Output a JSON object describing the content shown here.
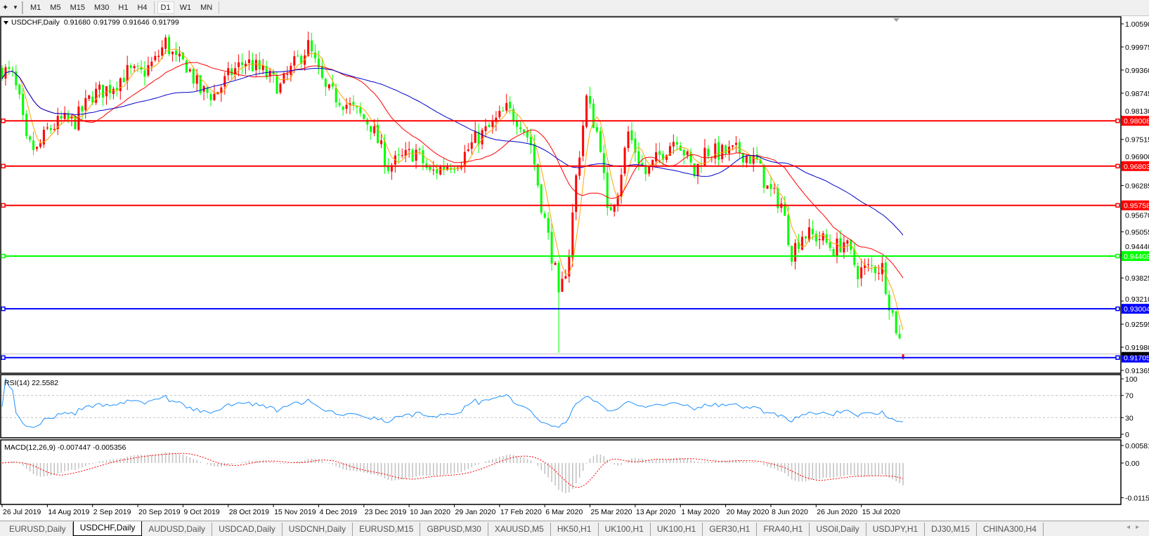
{
  "toolbar": {
    "periods": [
      "M1",
      "M5",
      "M15",
      "M30",
      "H1",
      "H4",
      "D1",
      "W1",
      "MN"
    ],
    "active_period": "D1"
  },
  "header": {
    "symbol": "USDCHF,Daily",
    "open": "0.91680",
    "high": "0.91799",
    "low": "0.91646",
    "close": "0.91799"
  },
  "price_axis": [
    "1.00590",
    "0.99975",
    "0.99360",
    "0.98745",
    "0.98130",
    "0.97515",
    "0.96900",
    "0.96285",
    "0.95670",
    "0.95055",
    "0.94440",
    "0.93825",
    "0.93210",
    "0.92595",
    "0.91980",
    "0.91365"
  ],
  "levels": [
    {
      "price": "0.98008",
      "color": "#FF0000"
    },
    {
      "price": "0.96803",
      "color": "#FF0000"
    },
    {
      "price": "0.95758",
      "color": "#FF0000"
    },
    {
      "price": "0.94408",
      "color": "#00FF00"
    },
    {
      "price": "0.93004",
      "color": "#0000FF"
    },
    {
      "price": "0.91705",
      "color": "#0000FF"
    }
  ],
  "bid": {
    "price": "0.91799",
    "color": "#C0C0C0"
  },
  "candle_colors": {
    "bull": "#FF0000",
    "bear": "#00FF00"
  },
  "ma_colors": {
    "fast": "#FFA500",
    "mid": "#FF0000",
    "slow": "#0000CD"
  },
  "price_path": [
    {
      "date": "26 Jul 2019",
      "close": 0.9938
    },
    {
      "date": "31 Jul 2019",
      "close": 0.992
    },
    {
      "date": "2 Aug 2019",
      "close": 0.985
    },
    {
      "date": "6 Aug 2019",
      "close": 0.974
    },
    {
      "date": "9 Aug 2019",
      "close": 0.972
    },
    {
      "date": "14 Aug 2019",
      "close": 0.9775
    },
    {
      "date": "20 Aug 2019",
      "close": 0.98
    },
    {
      "date": "26 Aug 2019",
      "close": 0.98
    },
    {
      "date": "2 Sep 2019",
      "close": 0.987
    },
    {
      "date": "9 Sep 2019",
      "close": 0.989
    },
    {
      "date": "16 Sep 2019",
      "close": 0.993
    },
    {
      "date": "20 Sep 2019",
      "close": 0.9925
    },
    {
      "date": "26 Sep 2019",
      "close": 0.996
    },
    {
      "date": "1 Oct 2019",
      "close": 1.001
    },
    {
      "date": "4 Oct 2019",
      "close": 0.996
    },
    {
      "date": "9 Oct 2019",
      "close": 0.995
    },
    {
      "date": "15 Oct 2019",
      "close": 0.988
    },
    {
      "date": "21 Oct 2019",
      "close": 0.987
    },
    {
      "date": "28 Oct 2019",
      "close": 0.993
    },
    {
      "date": "1 Nov 2019",
      "close": 0.996
    },
    {
      "date": "8 Nov 2019",
      "close": 0.993
    },
    {
      "date": "15 Nov 2019",
      "close": 0.989
    },
    {
      "date": "21 Nov 2019",
      "close": 0.995
    },
    {
      "date": "27 Nov 2019",
      "close": 1.0
    },
    {
      "date": "4 Dec 2019",
      "close": 0.988
    },
    {
      "date": "10 Dec 2019",
      "close": 0.986
    },
    {
      "date": "16 Dec 2019",
      "close": 0.983
    },
    {
      "date": "23 Dec 2019",
      "close": 0.979
    },
    {
      "date": "31 Dec 2019",
      "close": 0.968
    },
    {
      "date": "6 Jan 2020",
      "close": 0.97
    },
    {
      "date": "10 Jan 2020",
      "close": 0.972
    },
    {
      "date": "16 Jan 2020",
      "close": 0.966
    },
    {
      "date": "22 Jan 2020",
      "close": 0.968
    },
    {
      "date": "29 Jan 2020",
      "close": 0.97
    },
    {
      "date": "4 Feb 2020",
      "close": 0.975
    },
    {
      "date": "10 Feb 2020",
      "close": 0.978
    },
    {
      "date": "17 Feb 2020",
      "close": 0.983
    },
    {
      "date": "21 Feb 2020",
      "close": 0.98
    },
    {
      "date": "26 Feb 2020",
      "close": 0.974
    },
    {
      "date": "2 Mar 2020",
      "close": 0.958
    },
    {
      "date": "6 Mar 2020",
      "close": 0.94
    },
    {
      "date": "9 Mar 2020",
      "close": 0.932
    },
    {
      "date": "12 Mar 2020",
      "close": 0.945
    },
    {
      "date": "16 Mar 2020",
      "close": 0.965
    },
    {
      "date": "19 Mar 2020",
      "close": 0.986
    },
    {
      "date": "25 Mar 2020",
      "close": 0.974
    },
    {
      "date": "27 Mar 2020",
      "close": 0.955
    },
    {
      "date": "1 Apr 2020",
      "close": 0.962
    },
    {
      "date": "6 Apr 2020",
      "close": 0.977
    },
    {
      "date": "9 Apr 2020",
      "close": 0.97
    },
    {
      "date": "13 Apr 2020",
      "close": 0.966
    },
    {
      "date": "20 Apr 2020",
      "close": 0.972
    },
    {
      "date": "24 Apr 2020",
      "close": 0.976
    },
    {
      "date": "1 May 2020",
      "close": 0.966
    },
    {
      "date": "6 May 2020",
      "close": 0.972
    },
    {
      "date": "13 May 2020",
      "close": 0.9715
    },
    {
      "date": "20 May 2020",
      "close": 0.972
    },
    {
      "date": "27 May 2020",
      "close": 0.969
    },
    {
      "date": "1 Jun 2020",
      "close": 0.962
    },
    {
      "date": "5 Jun 2020",
      "close": 0.958
    },
    {
      "date": "10 Jun 2020",
      "close": 0.945
    },
    {
      "date": "15 Jun 2020",
      "close": 0.95
    },
    {
      "date": "22 Jun 2020",
      "close": 0.949
    },
    {
      "date": "26 Jun 2020",
      "close": 0.946
    },
    {
      "date": "1 Jul 2020",
      "close": 0.948
    },
    {
      "date": "7 Jul 2020",
      "close": 0.94
    },
    {
      "date": "13 Jul 2020",
      "close": 0.941
    },
    {
      "date": "16 Jul 2020",
      "close": 0.941
    },
    {
      "date": "20 Jul 2020",
      "close": 0.932
    },
    {
      "date": "22 Jul 2020",
      "close": 0.925
    },
    {
      "date": "24 Jul 2020",
      "close": 0.91799
    }
  ],
  "time_axis": [
    "26 Jul 2019",
    "14 Aug 2019",
    "2 Sep 2019",
    "20 Sep 2019",
    "9 Oct 2019",
    "28 Oct 2019",
    "15 Nov 2019",
    "4 Dec 2019",
    "23 Dec 2019",
    "10 Jan 2020",
    "29 Jan 2020",
    "17 Feb 2020",
    "6 Mar 2020",
    "25 Mar 2020",
    "13 Apr 2020",
    "1 May 2020",
    "20 May 2020",
    "8 Jun 2020",
    "26 Jun 2020",
    "15 Jul 2020"
  ],
  "rsi": {
    "label": "RSI(14) 22.5582",
    "axis": [
      "100",
      "70",
      "30",
      "0"
    ],
    "color": "#1E90FF",
    "value": 22.5582
  },
  "macd": {
    "label": "MACD(12,26,9) -0.007447 -0.005356",
    "axis": [
      "0.005818",
      "0.00",
      "-0.01151"
    ],
    "hist_color": "#C0C0C0",
    "signal_color": "#FF0000"
  },
  "tabs": [
    "EURUSD,Daily",
    "USDCHF,Daily",
    "AUDUSD,Daily",
    "USDCAD,Daily",
    "USDCNH,Daily",
    "EURUSD,M15",
    "GBPUSD,M30",
    "XAUUSD,M5",
    "HK50,H1",
    "UK100,H1",
    "UK100,H1",
    "GER30,H1",
    "FRA40,H1",
    "USOil,Daily",
    "USDJPY,H1",
    "DJ30,M15",
    "CHINA300,H4"
  ],
  "active_tab": "USDCHF,Daily"
}
